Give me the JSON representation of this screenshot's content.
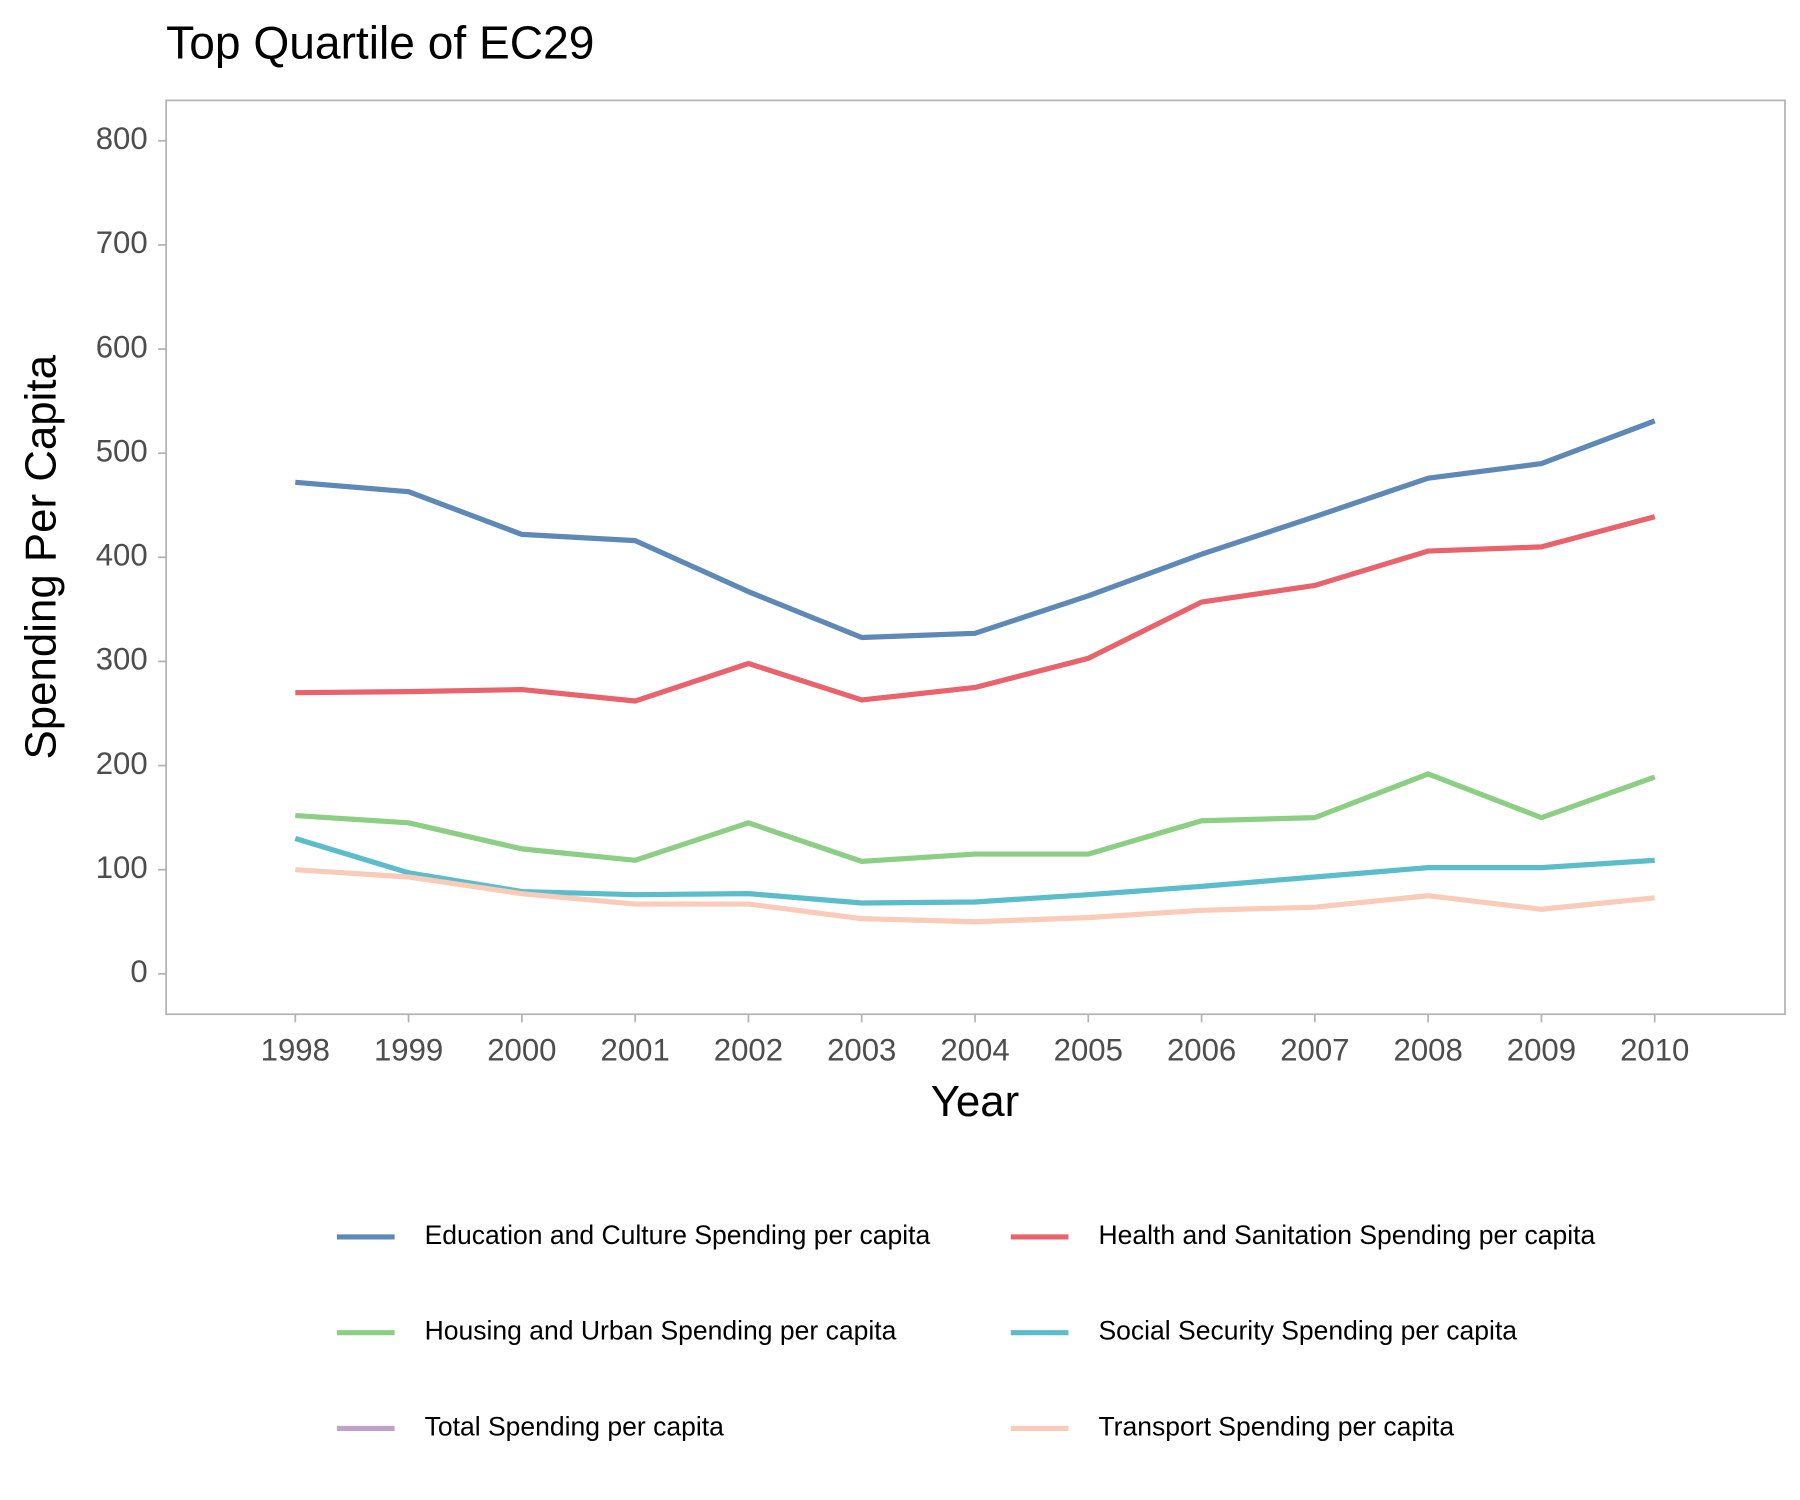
{
  "chart_data": {
    "type": "line",
    "title": "Top Quartile of EC29",
    "x_label": "Year",
    "y_label": "Spending Per Capita",
    "x": [
      1998,
      1999,
      2000,
      2001,
      2002,
      2003,
      2004,
      2005,
      2006,
      2007,
      2008,
      2009,
      2010
    ],
    "xlim": [
      1996.86,
      2011.15
    ],
    "xticks": [
      1998,
      1999,
      2000,
      2001,
      2002,
      2003,
      2004,
      2005,
      2006,
      2007,
      2008,
      2009,
      2010
    ],
    "ylim": [
      -38.8,
      838.8
    ],
    "yticks": [
      0,
      100,
      200,
      300,
      400,
      500,
      600,
      700,
      800
    ],
    "grid": false,
    "legend_position": "bottom",
    "series": [
      {
        "name": "Education and Culture Spending per capita",
        "color": "#5e88b5",
        "values": [
          472,
          463,
          422,
          416,
          367,
          323,
          327,
          363,
          403,
          439,
          476,
          490,
          531
        ]
      },
      {
        "name": "Health and Sanitation Spending per capita",
        "color": "#e8636b",
        "values": [
          270,
          271,
          273,
          262,
          298,
          263,
          275,
          303,
          357,
          373,
          406,
          410,
          439
        ]
      },
      {
        "name": "Housing and Urban Spending per capita",
        "color": "#8ccf84",
        "values": [
          152,
          145,
          120,
          109,
          145,
          108,
          115,
          115,
          147,
          150,
          192,
          150,
          189
        ]
      },
      {
        "name": "Social Security Spending per capita",
        "color": "#5bbccc",
        "values": [
          130,
          97,
          79,
          76,
          77,
          68,
          69,
          76,
          84,
          93,
          102,
          102,
          109
        ]
      },
      {
        "name": "Total Spending per capita",
        "color": "#bfa2cb",
        "values": [
          null,
          null,
          null,
          null,
          null,
          null,
          null,
          null,
          null,
          null,
          null,
          null,
          null
        ]
      },
      {
        "name": "Transport Spending per capita",
        "color": "#f9cbb8",
        "values": [
          100,
          93,
          77,
          67,
          67,
          53,
          50,
          54,
          61,
          64,
          75,
          62,
          73
        ]
      }
    ]
  }
}
